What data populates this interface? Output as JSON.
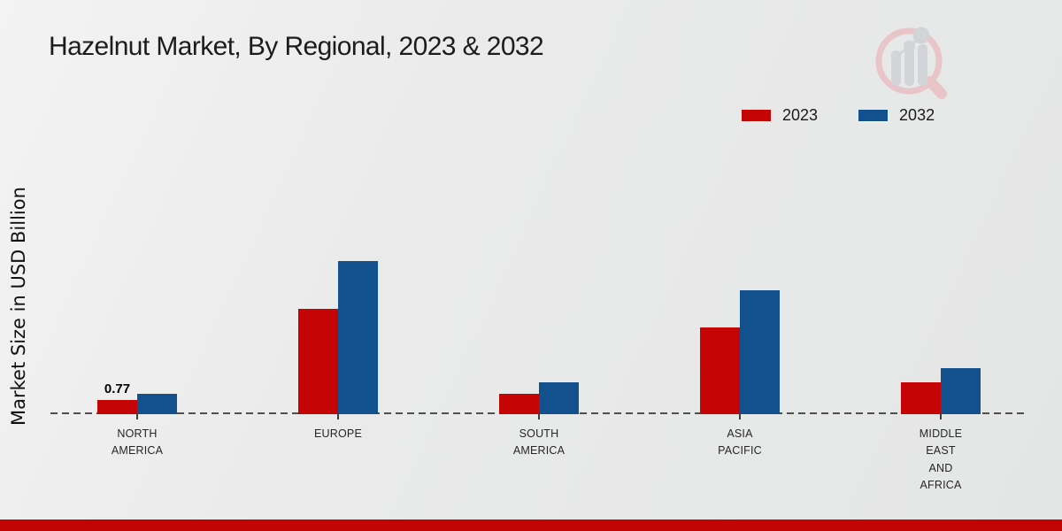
{
  "chart_data": {
    "type": "bar",
    "title": "Hazelnut Market, By Regional, 2023 & 2032",
    "ylabel": "Market Size in USD Billion",
    "xlabel": "",
    "unit": "USD Billion",
    "categories": [
      "NORTH\nAMERICA",
      "EUROPE",
      "SOUTH\nAMERICA",
      "ASIA\nPACIFIC",
      "MIDDLE\nEAST\nAND\nAFRICA"
    ],
    "series": [
      {
        "name": "2023",
        "color": "#c50505",
        "values": [
          0.77,
          5.83,
          1.13,
          4.8,
          1.76
        ],
        "data_labels": [
          "0.77",
          "",
          "",
          "",
          ""
        ]
      },
      {
        "name": "2032",
        "color": "#12508e",
        "values": [
          1.12,
          8.48,
          1.77,
          6.86,
          2.55
        ],
        "data_labels": [
          "",
          "",
          "",
          "",
          ""
        ]
      }
    ],
    "ylim": [
      0,
      10
    ],
    "grid": false,
    "legend_position": "top-right",
    "baseline_style": "dashed"
  },
  "footer": {
    "color": "#c20404"
  },
  "logo": {
    "circle_color": "#e9c4c8",
    "bars_color": "#d3d4d7"
  }
}
